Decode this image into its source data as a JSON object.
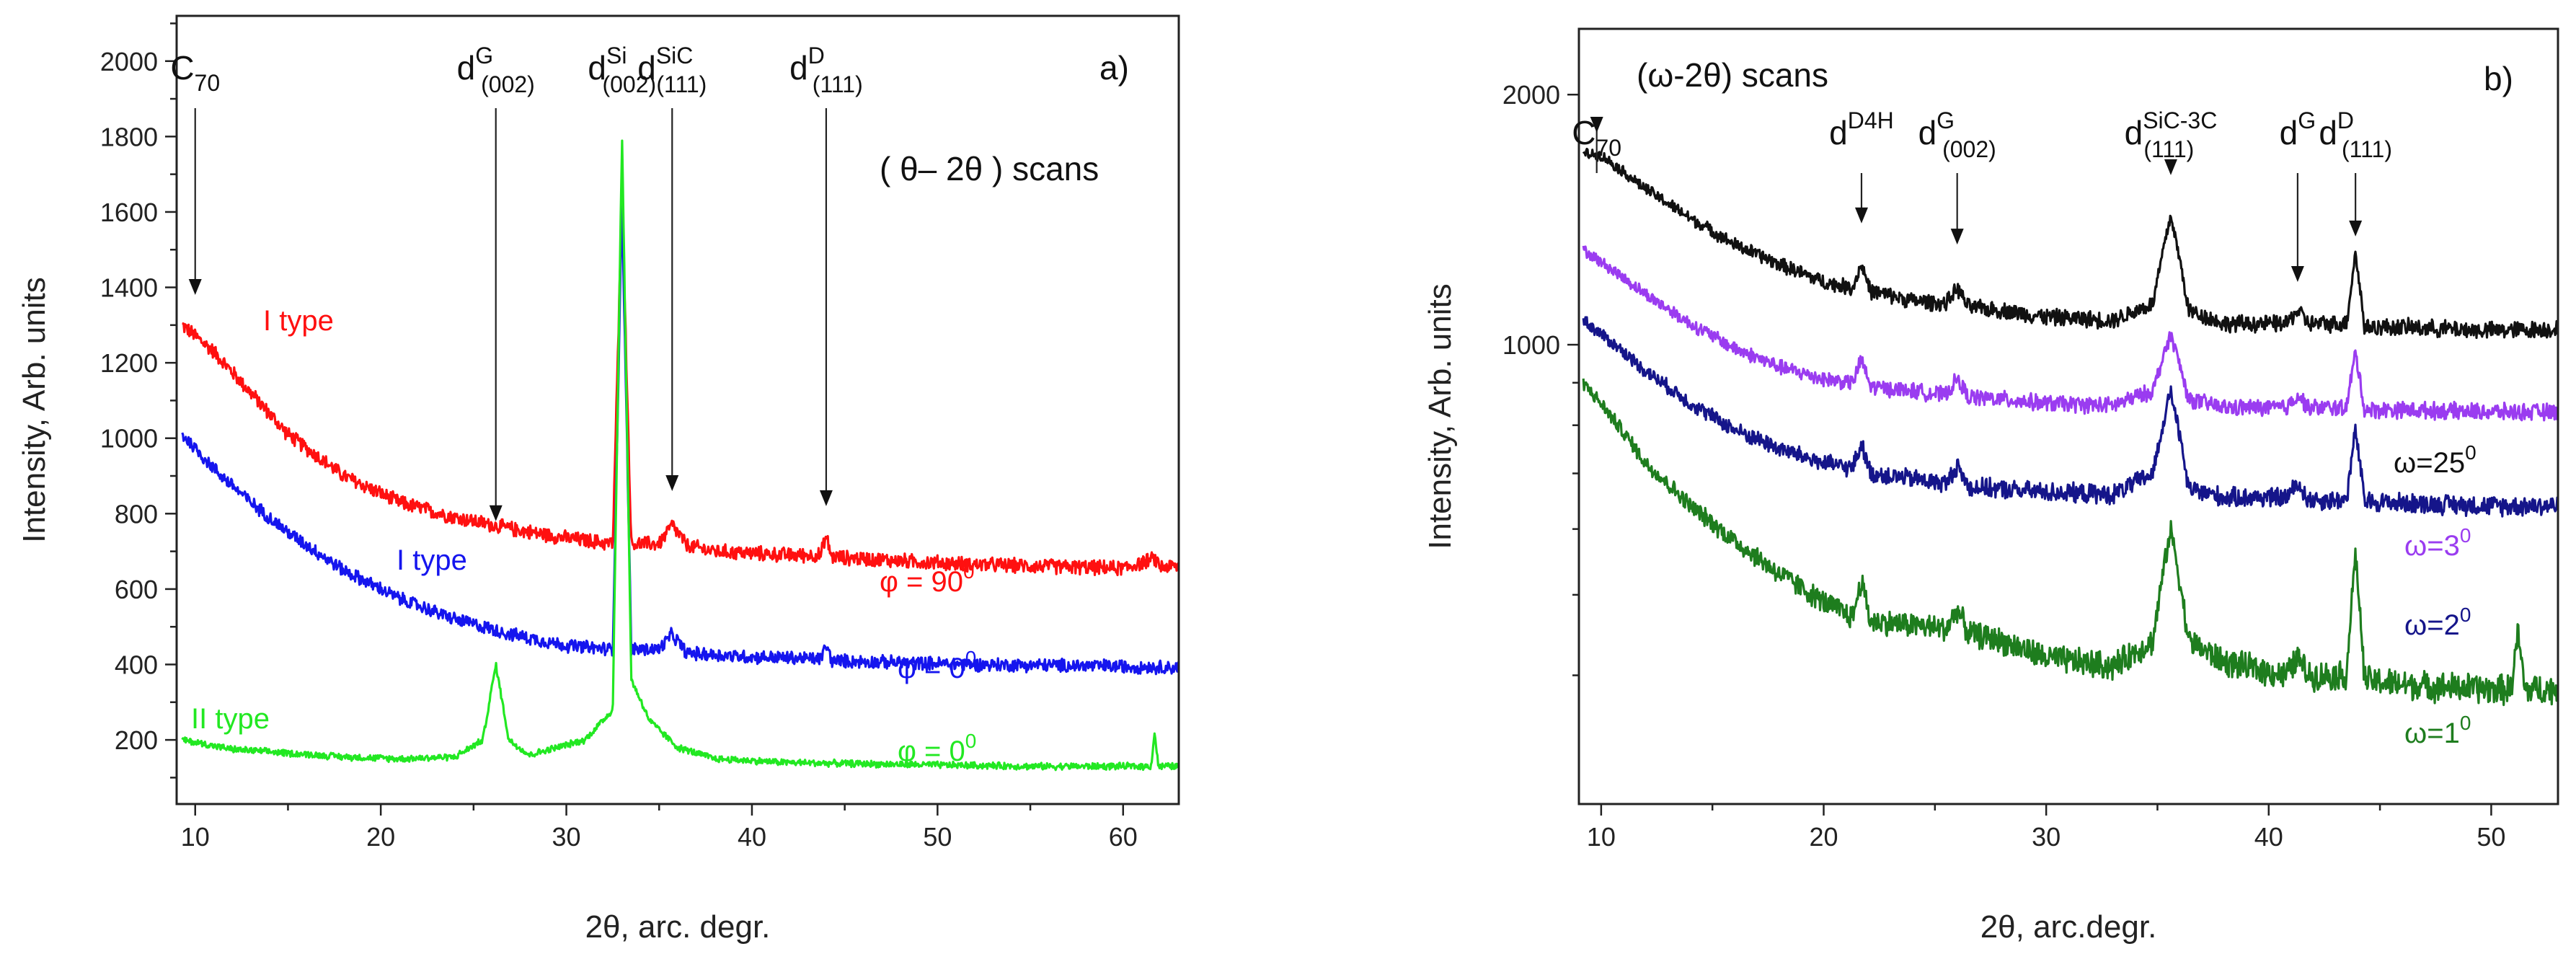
{
  "chart_data": [
    {
      "type": "line",
      "panel_label": "a)",
      "scan_label": "( θ– 2θ ) scans",
      "xlabel": "2θ, arc. degr.",
      "ylabel": "Intensity, Arb. units",
      "xlim": [
        9,
        63
      ],
      "ylim": [
        30,
        2120
      ],
      "xticks": [
        10,
        20,
        30,
        40,
        50,
        60
      ],
      "yticks": [
        200,
        400,
        600,
        800,
        1000,
        1200,
        1400,
        1600,
        1800,
        2000
      ],
      "peak_labels": [
        {
          "main": "C",
          "sub": "70",
          "sup": "",
          "x": 10.0,
          "arrow_y": 1380
        },
        {
          "main": "d",
          "sup": "G",
          "sub": "(002)",
          "x": 26.2,
          "arrow_y": 780
        },
        {
          "main": "d",
          "sup": "Si",
          "sub": "(002)",
          "x": 33.0,
          "arrow_y": 0
        },
        {
          "main": "d",
          "sup": "SiC",
          "sub": "(111)",
          "x": 35.7,
          "arrow_y": 860
        },
        {
          "main": "d",
          "sup": "D",
          "sub": "(111)",
          "x": 44.0,
          "arrow_y": 820
        }
      ],
      "series": [
        {
          "color": "#ff1010",
          "type_label": "I type",
          "phi_label": "φ = 90",
          "phi_sup": "0",
          "noise": 22,
          "x": [
            9.3,
            11,
            13,
            15,
            18,
            21,
            24,
            27,
            30,
            32.5,
            33.0,
            33.5,
            35.0,
            35.7,
            36.5,
            38,
            42,
            43.7,
            44.0,
            44.3,
            48,
            52,
            56,
            60,
            61.7,
            62,
            63
          ],
          "y": [
            1300,
            1230,
            1120,
            1010,
            900,
            830,
            790,
            760,
            735,
            720,
            1630,
            720,
            720,
            770,
            715,
            700,
            690,
            690,
            740,
            685,
            675,
            665,
            660,
            655,
            680,
            660,
            660
          ]
        },
        {
          "color": "#1515ee",
          "type_label": "I type",
          "phi_label": "φ = 0",
          "phi_sup": "0",
          "noise": 20,
          "x": [
            9.3,
            11,
            13,
            15,
            18,
            21,
            24,
            27,
            30,
            32.5,
            33.0,
            33.5,
            35.0,
            35.7,
            36.5,
            40,
            43.7,
            44.0,
            44.3,
            48,
            52,
            56,
            60,
            63
          ],
          "y": [
            1010,
            920,
            830,
            750,
            650,
            575,
            520,
            480,
            450,
            440,
            1630,
            440,
            440,
            480,
            430,
            420,
            415,
            450,
            410,
            405,
            400,
            398,
            395,
            392
          ]
        },
        {
          "color": "#22e822",
          "type_label": "II type",
          "phi_label": "φ = 0",
          "phi_sup": "0",
          "noise": 10,
          "x": [
            9.3,
            12,
            15,
            18,
            21,
            24,
            25.5,
            26.2,
            26.9,
            28,
            31,
            32.5,
            33.0,
            33.5,
            34.5,
            36,
            38,
            42,
            48,
            55,
            61.5,
            61.7,
            61.9,
            63
          ],
          "y": [
            200,
            175,
            165,
            155,
            150,
            155,
            200,
            400,
            200,
            160,
            200,
            280,
            1800,
            360,
            250,
            180,
            150,
            140,
            135,
            130,
            130,
            220,
            130,
            130
          ]
        }
      ]
    },
    {
      "type": "line",
      "panel_label": "b)",
      "scan_label": "(ω-2θ) scans",
      "xlabel": "2θ, arc.degr.",
      "ylabel": "Intensity, Arb. units",
      "ylog": true,
      "xlim": [
        9,
        53
      ],
      "ylim": [
        280,
        2400
      ],
      "xticks": [
        10,
        20,
        30,
        40,
        50
      ],
      "yticks": [
        1000,
        2000
      ],
      "peak_labels": [
        {
          "main": "C",
          "sub": "70",
          "sup": "",
          "x": 9.8,
          "arrow_y": 1800
        },
        {
          "main": "d",
          "sup": "D4H",
          "sub": "",
          "x": 21.7,
          "arrow_y": 1400
        },
        {
          "main": "d",
          "sup": "G",
          "sub": "(002)",
          "x": 26.0,
          "arrow_y": 1320
        },
        {
          "main": "d",
          "sup": "SiC-3C",
          "sub": "(111)",
          "x": 35.6,
          "arrow_y": 1600
        },
        {
          "main": "d",
          "sup": "G",
          "sub": "",
          "x": 41.3,
          "arrow_y": 1190
        },
        {
          "main": "d",
          "sup": "D",
          "sub": "(111)",
          "x": 43.9,
          "arrow_y": 1350
        }
      ],
      "series": [
        {
          "color": "#111111",
          "omega_label": "ω=25",
          "omega_sup": "0",
          "noise": 28,
          "x": [
            9.2,
            10,
            12,
            14,
            16,
            18,
            20,
            21.3,
            21.7,
            22.1,
            24,
            25.5,
            26.0,
            26.5,
            28,
            30,
            33,
            34.8,
            35.6,
            36.4,
            38,
            40.8,
            41.3,
            41.8,
            43.5,
            43.9,
            44.3,
            46,
            50,
            53
          ],
          "y": [
            1700,
            1690,
            1540,
            1420,
            1320,
            1250,
            1190,
            1170,
            1250,
            1160,
            1130,
            1120,
            1170,
            1110,
            1100,
            1080,
            1070,
            1120,
            1430,
            1100,
            1060,
            1060,
            1100,
            1060,
            1060,
            1290,
            1050,
            1050,
            1040,
            1045
          ]
        },
        {
          "color": "#9a3cf0",
          "omega_label": "ω=3",
          "omega_sup": "0",
          "noise": 22,
          "x": [
            9.2,
            12,
            14,
            16,
            18,
            20,
            21.3,
            21.7,
            22.1,
            24,
            25.5,
            26.0,
            26.5,
            28,
            30,
            33,
            34.8,
            35.6,
            36.4,
            38,
            40.8,
            41.3,
            41.8,
            43.5,
            43.9,
            44.3,
            46,
            50,
            53
          ],
          "y": [
            1300,
            1150,
            1060,
            990,
            940,
            910,
            900,
            960,
            890,
            880,
            870,
            910,
            865,
            860,
            850,
            845,
            880,
            1030,
            860,
            840,
            840,
            870,
            840,
            840,
            980,
            835,
            835,
            830,
            830
          ]
        },
        {
          "color": "#15158a",
          "omega_label": "ω=2",
          "omega_sup": "0",
          "noise": 20,
          "x": [
            9.2,
            12,
            14,
            16,
            18,
            20,
            21.3,
            21.7,
            22.1,
            24,
            25.5,
            26.0,
            26.5,
            28,
            30,
            33,
            34.8,
            35.6,
            36.4,
            38,
            40.8,
            41.3,
            41.8,
            43.5,
            43.9,
            44.3,
            46,
            50,
            53
          ],
          "y": [
            1070,
            930,
            850,
            790,
            750,
            720,
            710,
            760,
            700,
            690,
            680,
            715,
            675,
            670,
            665,
            660,
            700,
            880,
            670,
            655,
            655,
            680,
            650,
            650,
            790,
            648,
            645,
            640,
            640
          ]
        },
        {
          "color": "#1e7d1e",
          "omega_label": "ω=1",
          "omega_sup": "0",
          "noise": 18,
          "x": [
            9.2,
            12,
            14,
            16,
            18,
            20,
            21.3,
            21.7,
            22.1,
            24,
            25.5,
            26.0,
            26.5,
            28,
            30,
            33,
            34.8,
            35.6,
            36.4,
            38,
            40.8,
            41.3,
            41.8,
            43.5,
            43.9,
            44.3,
            46,
            50,
            50.9,
            51.2,
            51.5,
            53
          ],
          "y": [
            900,
            720,
            640,
            580,
            530,
            490,
            470,
            520,
            465,
            460,
            455,
            480,
            450,
            440,
            420,
            410,
            440,
            600,
            440,
            415,
            400,
            420,
            400,
            400,
            560,
            395,
            390,
            385,
            385,
            450,
            385,
            385
          ]
        }
      ]
    }
  ]
}
